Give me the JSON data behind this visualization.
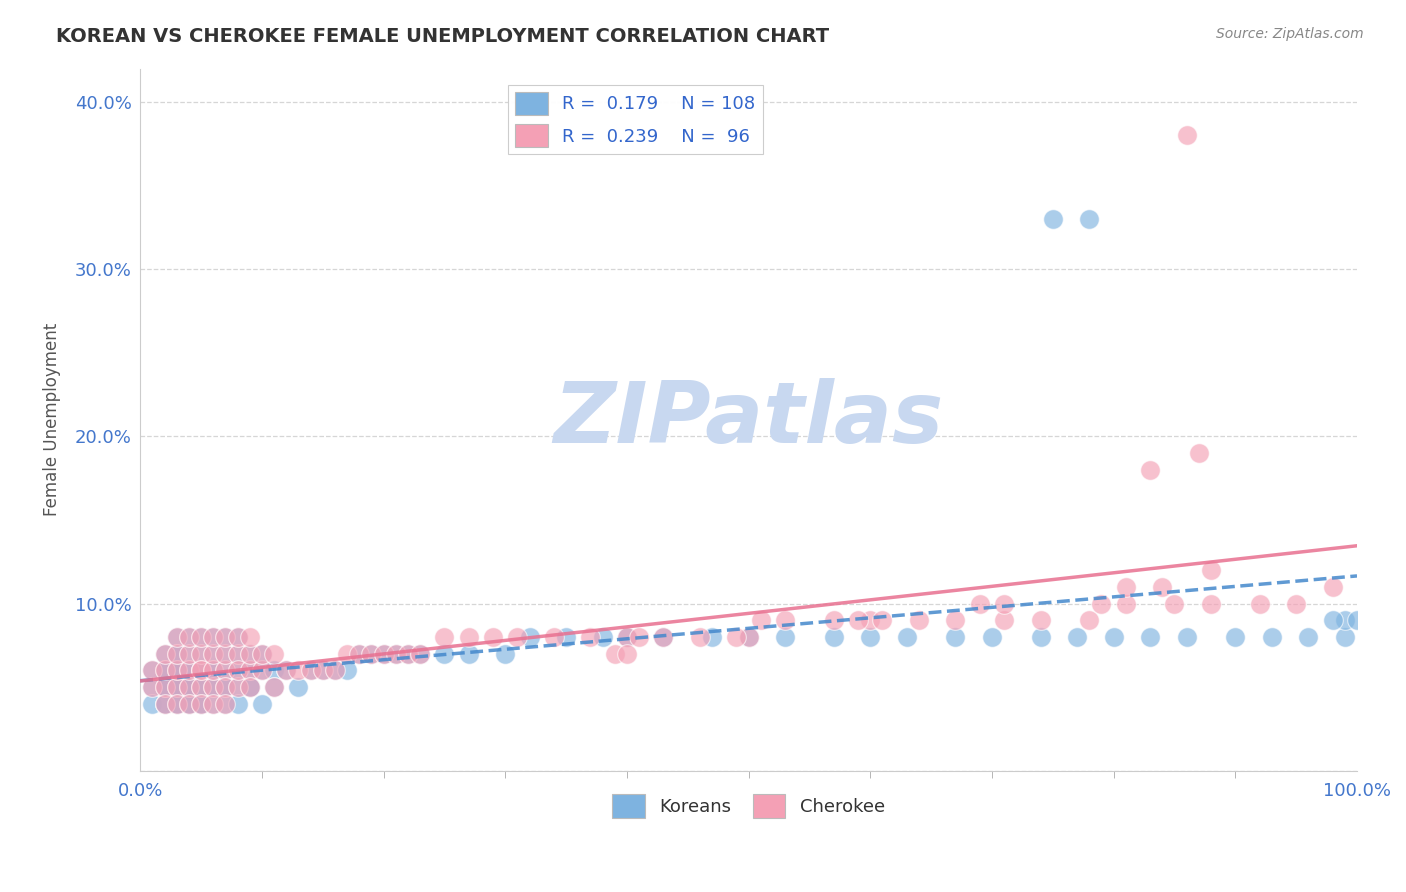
{
  "title": "KOREAN VS CHEROKEE FEMALE UNEMPLOYMENT CORRELATION CHART",
  "source": "Source: ZipAtlas.com",
  "ylabel": "Female Unemployment",
  "xlim": [
    0,
    100
  ],
  "ylim": [
    0,
    42
  ],
  "ytick_positions": [
    0,
    10,
    20,
    30,
    40
  ],
  "ytick_labels": [
    "",
    "10.0%",
    "20.0%",
    "30.0%",
    "40.0%"
  ],
  "korean_R": 0.179,
  "korean_N": 108,
  "cherokee_R": 0.239,
  "cherokee_N": 96,
  "korean_color": "#7EB3E0",
  "cherokee_color": "#F4A0B5",
  "korean_line_color": "#4488CC",
  "cherokee_line_color": "#E87090",
  "legend_color": "#3366CC",
  "watermark": "ZIPatlas",
  "watermark_color": "#C8D8F0",
  "background_color": "#FFFFFF",
  "title_color": "#333333",
  "title_fontsize": 14,
  "axis_label_color": "#555555",
  "tick_label_color": "#4477CC",
  "grid_color": "#CCCCCC",
  "korean_x": [
    1,
    1,
    1,
    2,
    2,
    2,
    2,
    2,
    2,
    2,
    2,
    3,
    3,
    3,
    3,
    3,
    3,
    3,
    3,
    3,
    3,
    3,
    4,
    4,
    4,
    4,
    4,
    4,
    4,
    4,
    4,
    5,
    5,
    5,
    5,
    5,
    5,
    5,
    5,
    6,
    6,
    6,
    6,
    6,
    6,
    6,
    7,
    7,
    7,
    7,
    7,
    7,
    8,
    8,
    8,
    8,
    8,
    9,
    9,
    9,
    9,
    10,
    10,
    10,
    11,
    11,
    12,
    13,
    14,
    15,
    16,
    17,
    18,
    19,
    20,
    21,
    22,
    23,
    25,
    27,
    30,
    32,
    35,
    38,
    40,
    43,
    47,
    50,
    53,
    57,
    60,
    63,
    67,
    70,
    74,
    77,
    80,
    83,
    86,
    90,
    93,
    96,
    99,
    99,
    75,
    78,
    98,
    100
  ],
  "korean_y": [
    5,
    6,
    4,
    5,
    6,
    4,
    7,
    5,
    6,
    4,
    5,
    5,
    6,
    4,
    7,
    5,
    6,
    8,
    5,
    4,
    6,
    7,
    5,
    6,
    4,
    7,
    5,
    8,
    6,
    5,
    4,
    5,
    6,
    7,
    4,
    8,
    5,
    6,
    4,
    5,
    6,
    7,
    8,
    4,
    5,
    6,
    5,
    6,
    7,
    4,
    8,
    5,
    5,
    6,
    7,
    8,
    4,
    5,
    6,
    7,
    5,
    6,
    4,
    7,
    6,
    5,
    6,
    5,
    6,
    6,
    6,
    6,
    7,
    7,
    7,
    7,
    7,
    7,
    7,
    7,
    7,
    8,
    8,
    8,
    8,
    8,
    8,
    8,
    8,
    8,
    8,
    8,
    8,
    8,
    8,
    8,
    8,
    8,
    8,
    8,
    8,
    8,
    8,
    9,
    33,
    33,
    9,
    9
  ],
  "cherokee_x": [
    1,
    1,
    2,
    2,
    2,
    2,
    3,
    3,
    3,
    3,
    3,
    4,
    4,
    4,
    4,
    4,
    5,
    5,
    5,
    5,
    5,
    5,
    6,
    6,
    6,
    6,
    6,
    7,
    7,
    7,
    7,
    7,
    8,
    8,
    8,
    8,
    9,
    9,
    9,
    9,
    10,
    10,
    11,
    11,
    12,
    13,
    14,
    15,
    16,
    17,
    18,
    19,
    20,
    21,
    22,
    23,
    25,
    27,
    29,
    31,
    34,
    37,
    40,
    43,
    46,
    50,
    53,
    57,
    60,
    64,
    67,
    71,
    74,
    78,
    81,
    85,
    88,
    92,
    95,
    98,
    83,
    87,
    39,
    41,
    49,
    51,
    59,
    61,
    69,
    71,
    79,
    81,
    84,
    88,
    40,
    86
  ],
  "cherokee_y": [
    5,
    6,
    5,
    6,
    4,
    7,
    5,
    6,
    7,
    4,
    8,
    5,
    6,
    7,
    8,
    4,
    6,
    7,
    5,
    8,
    4,
    6,
    5,
    6,
    7,
    8,
    4,
    6,
    7,
    5,
    8,
    4,
    5,
    7,
    6,
    8,
    6,
    7,
    8,
    5,
    6,
    7,
    5,
    7,
    6,
    6,
    6,
    6,
    6,
    7,
    7,
    7,
    7,
    7,
    7,
    7,
    8,
    8,
    8,
    8,
    8,
    8,
    8,
    8,
    8,
    8,
    9,
    9,
    9,
    9,
    9,
    9,
    9,
    9,
    10,
    10,
    10,
    10,
    10,
    11,
    18,
    19,
    7,
    8,
    8,
    9,
    9,
    9,
    10,
    10,
    10,
    11,
    11,
    12,
    7,
    38
  ]
}
